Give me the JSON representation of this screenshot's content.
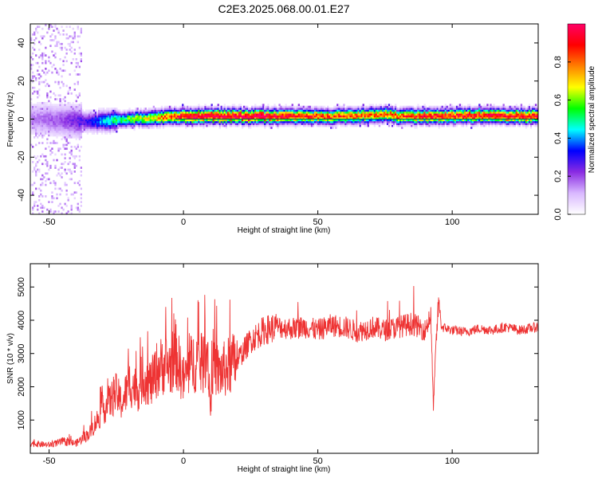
{
  "title": "C2E3.2025.068.00.01.E27",
  "chart_data": [
    {
      "type": "heatmap",
      "xlabel": "Height of straight line (km)",
      "ylabel": "Frequency (Hz)",
      "xlim": [
        -57,
        132
      ],
      "ylim": [
        -50,
        50
      ],
      "xticks": [
        -50,
        0,
        50,
        100
      ],
      "yticks": [
        -40,
        -20,
        0,
        20,
        40
      ],
      "xtick_labels": [
        "-50",
        "0",
        "50",
        "100"
      ],
      "ytick_labels": [
        "-40",
        "-20",
        "0",
        "20",
        "40"
      ],
      "reference_line_y": 0,
      "colorbar": {
        "label": "Normalized spectral amplitude",
        "range": [
          0,
          1
        ],
        "ticks": [
          0.0,
          0.2,
          0.4,
          0.6,
          0.8
        ],
        "tick_labels": [
          "0.0",
          "0.2",
          "0.4",
          "0.6",
          "0.8"
        ],
        "colors": [
          "#ffffff",
          "#d9b8ff",
          "#8a2be2",
          "#0000ff",
          "#00ffff",
          "#00ff00",
          "#ffff00",
          "#ff8000",
          "#ff0000",
          "#ff0066"
        ]
      },
      "ridge": {
        "x": [
          -57,
          -45,
          -35,
          -30,
          -20,
          -10,
          0,
          10,
          20,
          30,
          40,
          50,
          60,
          70,
          75,
          80,
          90,
          100,
          110,
          120,
          132
        ],
        "frequency": [
          0,
          -1,
          -2,
          -1.5,
          -0.5,
          0.5,
          1,
          1,
          1,
          1,
          1,
          1,
          1,
          1.5,
          2,
          1,
          1,
          1,
          1.5,
          1,
          1
        ],
        "peak_amplitude": [
          0.15,
          0.2,
          0.3,
          0.45,
          0.6,
          0.75,
          0.95,
          1.0,
          1.0,
          1.0,
          0.9,
          0.85,
          0.85,
          0.8,
          0.8,
          0.85,
          0.9,
          0.9,
          0.9,
          0.95,
          0.9
        ]
      }
    },
    {
      "type": "line",
      "xlabel": "Height of straight line (km)",
      "ylabel": "SNR (10 * v/v)",
      "xlim": [
        -57,
        132
      ],
      "ylim": [
        0,
        5700
      ],
      "xticks": [
        -50,
        0,
        50,
        100
      ],
      "yticks": [
        1000,
        2000,
        3000,
        4000,
        5000
      ],
      "xtick_labels": [
        "-50",
        "0",
        "50",
        "100"
      ],
      "ytick_labels": [
        "1000",
        "2000",
        "3000",
        "4000",
        "5000"
      ],
      "line_color": "#ee3333",
      "series": [
        {
          "x": [
            -57,
            -50,
            -45,
            -40,
            -35,
            -30,
            -27,
            -25,
            -23,
            -20,
            -17,
            -15,
            -12,
            -10,
            -7,
            -5,
            -3,
            0,
            3,
            5,
            7,
            9,
            10,
            11,
            13,
            15,
            20,
            25,
            30,
            35,
            40,
            45,
            50,
            55,
            60,
            65,
            70,
            75,
            80,
            85,
            90,
            92,
            93,
            94,
            95,
            96,
            100,
            105,
            110,
            115,
            120,
            125,
            132
          ],
          "values": [
            300,
            250,
            350,
            300,
            600,
            1300,
            1600,
            1800,
            1500,
            2100,
            1900,
            2300,
            2100,
            2500,
            2700,
            2600,
            3000,
            2200,
            2700,
            2800,
            2600,
            3200,
            1300,
            2800,
            2400,
            2500,
            2800,
            3400,
            3700,
            3800,
            3750,
            3800,
            3700,
            3850,
            3800,
            3650,
            3800,
            3700,
            3800,
            3900,
            3700,
            4200,
            1400,
            3300,
            4600,
            3800,
            3700,
            3650,
            3750,
            3700,
            3800,
            3700,
            3800
          ]
        }
      ]
    }
  ]
}
